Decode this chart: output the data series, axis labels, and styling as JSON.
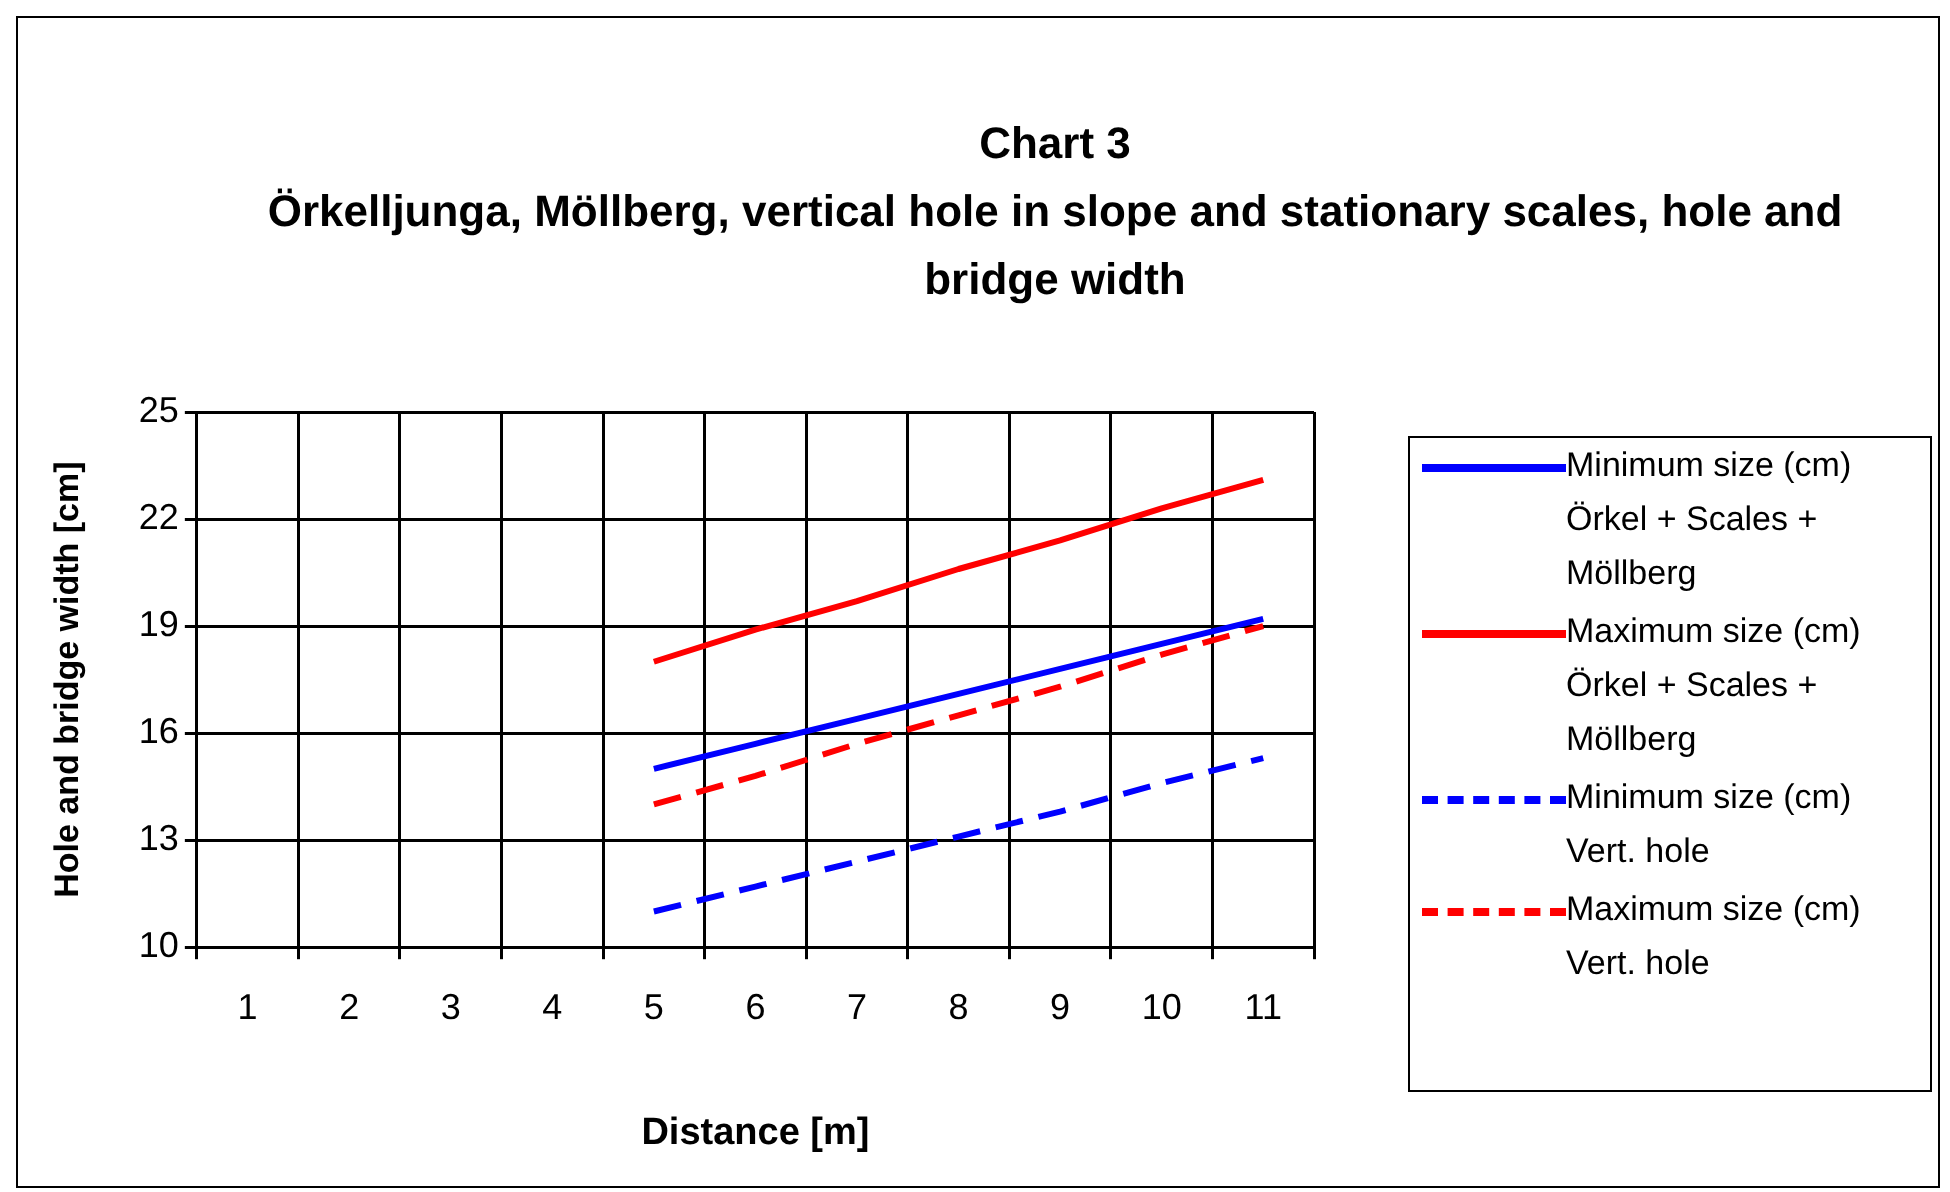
{
  "chart_data": {
    "type": "line",
    "title": "Chart 3",
    "subtitle": "Örkelljunga, Möllberg, vertical hole in slope and stationary scales, hole and bridge width",
    "xlabel": "Distance [m]",
    "ylabel": "Hole and bridge width [cm]",
    "categories": [
      "1",
      "2",
      "3",
      "4",
      "5",
      "6",
      "7",
      "8",
      "9",
      "10",
      "11"
    ],
    "series": [
      {
        "name": "Minimum size (cm) Örkel + Scales + Möllberg",
        "color": "#0000ff",
        "line_style": "solid",
        "values": [
          null,
          null,
          null,
          null,
          15,
          15.7,
          16.4,
          17.1,
          17.8,
          18.5,
          19.2
        ]
      },
      {
        "name": "Maximum size (cm) Örkel + Scales + Möllberg",
        "color": "#ff0000",
        "line_style": "solid",
        "values": [
          null,
          null,
          null,
          null,
          18,
          18.9,
          19.7,
          20.6,
          21.4,
          22.3,
          23.1
        ]
      },
      {
        "name": "Minimum size (cm) Vert. hole",
        "color": "#0000ff",
        "line_style": "dashed",
        "values": [
          null,
          null,
          null,
          null,
          11,
          11.7,
          12.4,
          13.1,
          13.8,
          14.6,
          15.3
        ]
      },
      {
        "name": "Maximum size (cm) Vert. hole",
        "color": "#ff0000",
        "line_style": "dashed",
        "values": [
          null,
          null,
          null,
          null,
          14,
          14.8,
          15.7,
          16.5,
          17.3,
          18.2,
          19
        ]
      }
    ],
    "ylim": [
      10,
      25
    ],
    "yticks": [
      10,
      13,
      16,
      19,
      22,
      25
    ],
    "grid": true,
    "legend": "right",
    "marker": "none"
  }
}
